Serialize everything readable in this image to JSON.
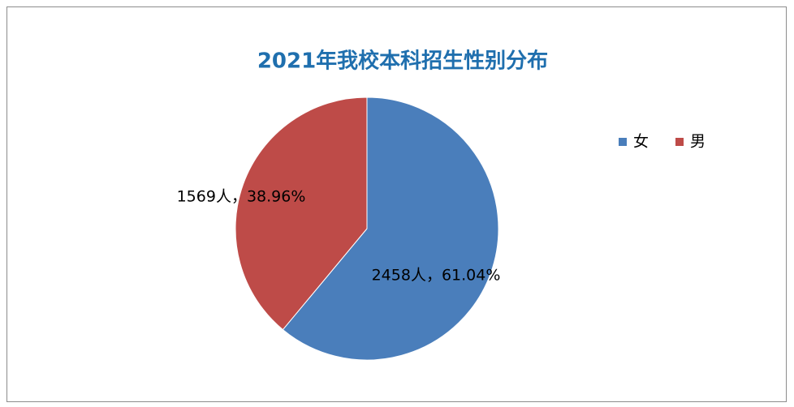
{
  "chart_data": {
    "type": "pie",
    "title": "2021年我校本科招生性别分布",
    "categories": [
      "女",
      "男"
    ],
    "values": [
      2458,
      1569
    ],
    "value_labels": [
      "2458人，61.04%",
      "1569人，38.96%"
    ],
    "colors": [
      "#4a7ebb",
      "#be4b48"
    ],
    "legend": "right"
  }
}
